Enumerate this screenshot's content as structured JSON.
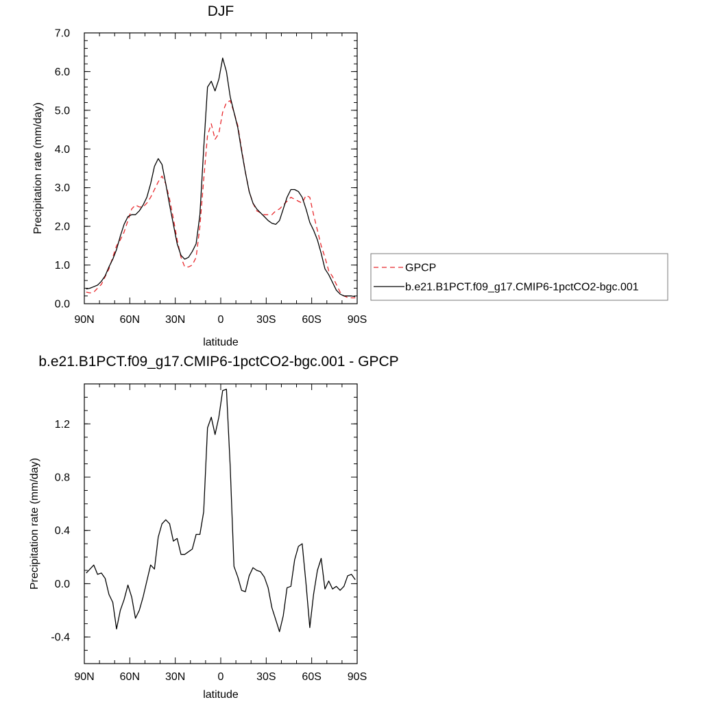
{
  "chart_data": [
    {
      "type": "line",
      "title": "DJF",
      "xlabel": "latitude",
      "ylabel": "Precipitation rate (mm/day)",
      "xlim": [
        90,
        -90
      ],
      "ylim": [
        0,
        7
      ],
      "x_ticks": [
        90,
        60,
        30,
        0,
        -30,
        -60,
        -90
      ],
      "x_tick_labels": [
        "90N",
        "60N",
        "30N",
        "0",
        "30S",
        "60S",
        "90S"
      ],
      "y_ticks": [
        0,
        1,
        2,
        3,
        4,
        5,
        6,
        7
      ],
      "y_tick_labels": [
        "0.0",
        "1.0",
        "2.0",
        "3.0",
        "4.0",
        "5.0",
        "6.0",
        "7.0"
      ],
      "grid": false,
      "legend_position": "right",
      "series": [
        {
          "name": "GPCP",
          "color": "#e8262a",
          "dash": "dashed",
          "x": [
            88.75,
            86.25,
            83.75,
            81.25,
            78.75,
            76.25,
            73.75,
            71.25,
            68.75,
            66.25,
            63.75,
            61.25,
            58.75,
            56.25,
            53.75,
            51.25,
            48.75,
            46.25,
            43.75,
            41.25,
            38.75,
            36.25,
            33.75,
            31.25,
            28.75,
            26.25,
            23.75,
            21.25,
            18.75,
            16.25,
            13.75,
            11.25,
            8.75,
            6.25,
            3.75,
            1.25,
            -1.25,
            -3.75,
            -6.25,
            -8.75,
            -11.25,
            -13.75,
            -16.25,
            -18.75,
            -21.25,
            -23.75,
            -26.25,
            -28.75,
            -31.25,
            -33.75,
            -36.25,
            -38.75,
            -41.25,
            -43.75,
            -46.25,
            -48.75,
            -51.25,
            -53.75,
            -56.25,
            -58.75,
            -61.25,
            -63.75,
            -66.25,
            -68.75,
            -71.25,
            -73.75,
            -76.25,
            -78.75,
            -81.25,
            -83.75,
            -86.25,
            -88.75
          ],
          "y": [
            0.3,
            0.28,
            0.3,
            0.4,
            0.5,
            0.7,
            0.9,
            1.2,
            1.5,
            1.65,
            1.85,
            2.15,
            2.45,
            2.55,
            2.5,
            2.5,
            2.6,
            2.75,
            2.95,
            3.15,
            3.3,
            3.1,
            2.7,
            2.2,
            1.65,
            1.2,
            0.95,
            0.95,
            1.0,
            1.2,
            2.0,
            3.2,
            4.35,
            4.65,
            4.25,
            4.4,
            4.95,
            5.2,
            5.25,
            4.95,
            4.6,
            4.0,
            3.4,
            2.9,
            2.6,
            2.4,
            2.35,
            2.3,
            2.3,
            2.3,
            2.4,
            2.45,
            2.55,
            2.65,
            2.75,
            2.7,
            2.65,
            2.6,
            2.8,
            2.75,
            2.3,
            1.9,
            1.5,
            1.2,
            0.85,
            0.7,
            0.5,
            0.3,
            0.2,
            0.16,
            0.15,
            0.15
          ]
        },
        {
          "name": "b.e21.B1PCT.f09_g17.CMIP6-1pctCO2-bgc.001",
          "color": "#000000",
          "dash": "solid",
          "x": [
            88.75,
            86.25,
            83.75,
            81.25,
            78.75,
            76.25,
            73.75,
            71.25,
            68.75,
            66.25,
            63.75,
            61.25,
            58.75,
            56.25,
            53.75,
            51.25,
            48.75,
            46.25,
            43.75,
            41.25,
            38.75,
            36.25,
            33.75,
            31.25,
            28.75,
            26.25,
            23.75,
            21.25,
            18.75,
            16.25,
            13.75,
            11.25,
            8.75,
            6.25,
            3.75,
            1.25,
            -1.25,
            -3.75,
            -6.25,
            -8.75,
            -11.25,
            -13.75,
            -16.25,
            -18.75,
            -21.25,
            -23.75,
            -26.25,
            -28.75,
            -31.25,
            -33.75,
            -36.25,
            -38.75,
            -41.25,
            -43.75,
            -46.25,
            -48.75,
            -51.25,
            -53.75,
            -56.25,
            -58.75,
            -61.25,
            -63.75,
            -66.25,
            -68.75,
            -71.25,
            -73.75,
            -76.25,
            -78.75,
            -81.25,
            -83.75,
            -86.25,
            -88.75
          ],
          "y": [
            0.38,
            0.4,
            0.44,
            0.48,
            0.58,
            0.72,
            0.95,
            1.15,
            1.4,
            1.75,
            2.05,
            2.25,
            2.3,
            2.3,
            2.4,
            2.55,
            2.75,
            3.1,
            3.55,
            3.75,
            3.6,
            3.1,
            2.55,
            2.05,
            1.55,
            1.25,
            1.15,
            1.2,
            1.35,
            1.55,
            2.3,
            4.0,
            5.6,
            5.75,
            5.5,
            5.8,
            6.35,
            6.0,
            5.35,
            4.95,
            4.55,
            3.95,
            3.4,
            2.9,
            2.6,
            2.45,
            2.35,
            2.25,
            2.15,
            2.08,
            2.05,
            2.15,
            2.45,
            2.75,
            2.95,
            2.95,
            2.9,
            2.75,
            2.45,
            2.1,
            1.9,
            1.65,
            1.3,
            0.9,
            0.75,
            0.55,
            0.35,
            0.25,
            0.2,
            0.2,
            0.2,
            0.18
          ]
        }
      ]
    },
    {
      "type": "line",
      "title": "b.e21.B1PCT.f09_g17.CMIP6-1pctCO2-bgc.001 - GPCP",
      "xlabel": "latitude",
      "ylabel": "Precipitation rate (mm/day)",
      "xlim": [
        90,
        -90
      ],
      "ylim": [
        -0.6,
        1.5
      ],
      "x_ticks": [
        90,
        60,
        30,
        0,
        -30,
        -60,
        -90
      ],
      "x_tick_labels": [
        "90N",
        "60N",
        "30N",
        "0",
        "30S",
        "60S",
        "90S"
      ],
      "y_ticks": [
        -0.4,
        0,
        0.4,
        0.8,
        1.2
      ],
      "y_tick_labels": [
        "-0.4",
        "0.0",
        "0.4",
        "0.8",
        "1.2"
      ],
      "grid": false,
      "series": [
        {
          "color": "#000000",
          "dash": "solid",
          "x": [
            88.75,
            86.25,
            83.75,
            81.25,
            78.75,
            76.25,
            73.75,
            71.25,
            68.75,
            66.25,
            63.75,
            61.25,
            58.75,
            56.25,
            53.75,
            51.25,
            48.75,
            46.25,
            43.75,
            41.25,
            38.75,
            36.25,
            33.75,
            31.25,
            28.75,
            26.25,
            23.75,
            21.25,
            18.75,
            16.25,
            13.75,
            11.25,
            8.75,
            6.25,
            3.75,
            1.25,
            -1.25,
            -3.75,
            -6.25,
            -8.75,
            -11.25,
            -13.75,
            -16.25,
            -18.75,
            -21.25,
            -23.75,
            -26.25,
            -28.75,
            -31.25,
            -33.75,
            -36.25,
            -38.75,
            -41.25,
            -43.75,
            -46.25,
            -48.75,
            -51.25,
            -53.75,
            -56.25,
            -58.75,
            -61.25,
            -63.75,
            -66.25,
            -68.75,
            -71.25,
            -73.75,
            -76.25,
            -78.75,
            -81.25,
            -83.75,
            -86.25,
            -88.75
          ],
          "y": [
            0.08,
            0.11,
            0.14,
            0.07,
            0.08,
            0.04,
            -0.08,
            -0.14,
            -0.34,
            -0.2,
            -0.12,
            -0.01,
            -0.1,
            -0.26,
            -0.2,
            -0.1,
            0.02,
            0.14,
            0.11,
            0.35,
            0.45,
            0.48,
            0.45,
            0.32,
            0.34,
            0.22,
            0.22,
            0.24,
            0.26,
            0.37,
            0.37,
            0.54,
            1.17,
            1.25,
            1.12,
            1.25,
            1.45,
            1.46,
            0.88,
            0.13,
            0.05,
            -0.05,
            -0.06,
            0.06,
            0.12,
            0.1,
            0.09,
            0.05,
            -0.03,
            -0.18,
            -0.27,
            -0.36,
            -0.24,
            -0.03,
            -0.02,
            0.18,
            0.28,
            0.3,
            0.0,
            -0.33,
            -0.08,
            0.1,
            0.19,
            -0.04,
            0.02,
            -0.04,
            -0.02,
            -0.05,
            -0.02,
            0.06,
            0.07,
            0.03
          ]
        }
      ]
    }
  ]
}
